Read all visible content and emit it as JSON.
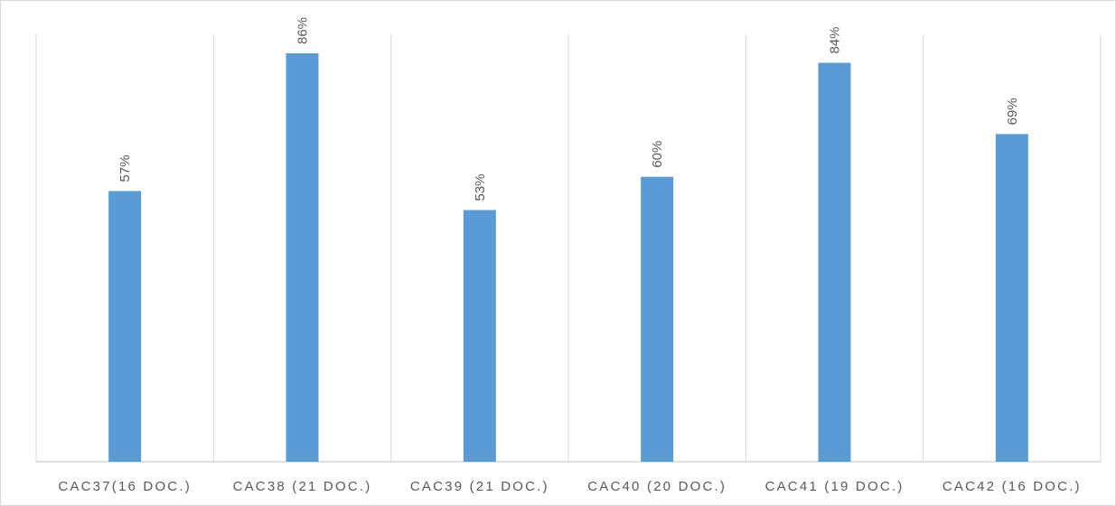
{
  "chart_data": {
    "type": "bar",
    "categories": [
      "CAC37(16 DOC.)",
      "CAC38 (21 DOC.)",
      "CAC39 (21 DOC.)",
      "CAC40 (20 DOC.)",
      "CAC41 (19 DOC.)",
      "CAC42 (16 DOC.)"
    ],
    "values": [
      57,
      86,
      53,
      60,
      84,
      69
    ],
    "value_labels": [
      "57%",
      "86%",
      "53%",
      "60%",
      "84%",
      "69%"
    ],
    "color": "#5b9bd5",
    "ylim": [
      0,
      90
    ]
  }
}
